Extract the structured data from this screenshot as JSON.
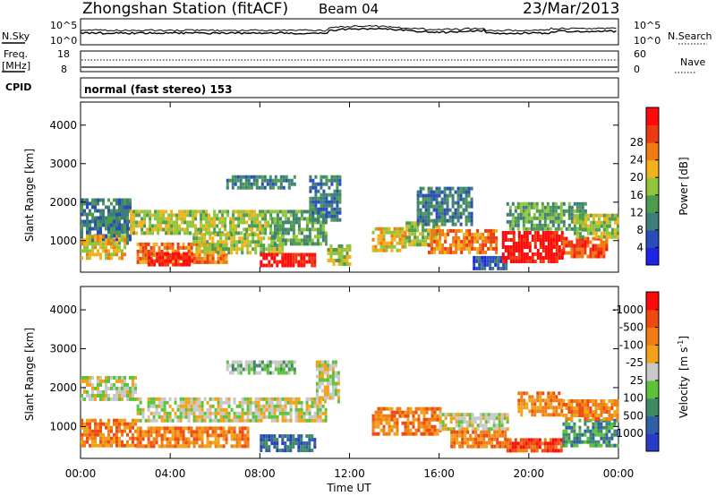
{
  "header": {
    "station": "Zhongshan Station (fitACF)",
    "beam": "Beam 04",
    "date": "23/Mar/2013"
  },
  "sky_panel": {
    "left_label": "N.Sky",
    "right_label": "N.Search",
    "left_ticks": [
      "10^5",
      "10^0"
    ],
    "right_ticks": [
      "10^5",
      "10^0"
    ]
  },
  "freq_panel": {
    "left_label_1": "Freq.",
    "left_label_2": "[MHz]",
    "right_label": "Nave",
    "left_ticks": [
      "18",
      "8"
    ],
    "right_ticks": [
      "60",
      "0"
    ]
  },
  "cpid": {
    "label": "CPID",
    "mode_text": "normal (fast stereo) 153"
  },
  "chart_data": [
    {
      "type": "heatmap",
      "parameter": "Power",
      "ylabel": "Slant Range [km]",
      "ylim": [
        180,
        4600
      ],
      "yticks": [
        "1000",
        "2000",
        "3000",
        "4000"
      ],
      "xlim_hours": [
        0,
        24
      ],
      "colorbar_label": "Power [dB]",
      "colorbar_ticks": [
        "4",
        "8",
        "12",
        "16",
        "20",
        "24",
        "28"
      ],
      "colorbar_colors": [
        "#1f24e6",
        "#2a4eb8",
        "#3d7d7a",
        "#4e9a4f",
        "#8fc63c",
        "#f2b21a",
        "#f07a14",
        "#ee3a12",
        "#ff0a0a"
      ],
      "regions": [
        {
          "t": [
            0.0,
            2.2
          ],
          "r": [
            900,
            2100
          ],
          "level": 2
        },
        {
          "t": [
            0.0,
            2.0
          ],
          "r": [
            550,
            1150
          ],
          "level": 5
        },
        {
          "t": [
            2.2,
            8.5
          ],
          "r": [
            1150,
            1800
          ],
          "level": 4
        },
        {
          "t": [
            2.5,
            6.5
          ],
          "r": [
            450,
            950
          ],
          "level": 6
        },
        {
          "t": [
            3.0,
            5.0
          ],
          "r": [
            350,
            700
          ],
          "level": 8
        },
        {
          "t": [
            5.0,
            9.0
          ],
          "r": [
            700,
            1200
          ],
          "level": 4
        },
        {
          "t": [
            6.5,
            9.5
          ],
          "r": [
            2400,
            2700
          ],
          "level": 2
        },
        {
          "t": [
            8.0,
            10.5
          ],
          "r": [
            320,
            680
          ],
          "level": 8
        },
        {
          "t": [
            8.5,
            11.0
          ],
          "r": [
            950,
            1800
          ],
          "level": 3
        },
        {
          "t": [
            10.2,
            11.6
          ],
          "r": [
            1500,
            2700
          ],
          "level": 2
        },
        {
          "t": [
            11.0,
            12.0
          ],
          "r": [
            400,
            900
          ],
          "level": 4
        },
        {
          "t": [
            13.0,
            14.5
          ],
          "r": [
            700,
            1350
          ],
          "level": 5
        },
        {
          "t": [
            14.5,
            16.0
          ],
          "r": [
            850,
            1500
          ],
          "level": 4
        },
        {
          "t": [
            15.5,
            18.5
          ],
          "r": [
            650,
            1300
          ],
          "level": 6
        },
        {
          "t": [
            15.0,
            17.5
          ],
          "r": [
            1400,
            2400
          ],
          "level": 2
        },
        {
          "t": [
            17.5,
            19.0
          ],
          "r": [
            300,
            600
          ],
          "level": 1
        },
        {
          "t": [
            18.8,
            21.5
          ],
          "r": [
            450,
            1250
          ],
          "level": 8
        },
        {
          "t": [
            19.0,
            22.5
          ],
          "r": [
            1300,
            2000
          ],
          "level": 3
        },
        {
          "t": [
            21.5,
            23.5
          ],
          "r": [
            550,
            1100
          ],
          "level": 7
        },
        {
          "t": [
            22.0,
            24.0
          ],
          "r": [
            1100,
            1700
          ],
          "level": 4
        }
      ]
    },
    {
      "type": "heatmap",
      "parameter": "Velocity",
      "ylabel": "Slant Range [km]",
      "ylim": [
        180,
        4600
      ],
      "yticks": [
        "1000",
        "2000",
        "3000",
        "4000"
      ],
      "xlabel": "Time UT",
      "xticks": [
        "00:00",
        "04:00",
        "08:00",
        "12:00",
        "16:00",
        "20:00",
        "00:00"
      ],
      "xlim_hours": [
        0,
        24
      ],
      "colorbar_label_1": "Velocity",
      "colorbar_label_2": "[m s",
      "colorbar_label_sup": "-1",
      "colorbar_label_3": "]",
      "colorbar_ticks": [
        "1000",
        "500",
        "100",
        "25",
        "-25",
        "-100",
        "-500",
        "-1000"
      ],
      "colorbar_colors": [
        "#2a3bc8",
        "#2f5fa6",
        "#3f8a63",
        "#5cc23a",
        "#c8c8c8",
        "#f2a21a",
        "#f07e14",
        "#ee4a12",
        "#ff0a0a"
      ],
      "regions": [
        {
          "t": [
            0.0,
            2.5
          ],
          "r": [
            1700,
            2300
          ],
          "level": 4
        },
        {
          "t": [
            0.0,
            2.5
          ],
          "r": [
            500,
            1200
          ],
          "level": 6
        },
        {
          "t": [
            2.5,
            11.0
          ],
          "r": [
            1150,
            1750
          ],
          "level": 4
        },
        {
          "t": [
            2.5,
            7.5
          ],
          "r": [
            450,
            1000
          ],
          "level": 6
        },
        {
          "t": [
            6.5,
            9.5
          ],
          "r": [
            2350,
            2700
          ],
          "level": 3
        },
        {
          "t": [
            8.0,
            10.5
          ],
          "r": [
            400,
            800
          ],
          "level": 1
        },
        {
          "t": [
            10.5,
            11.5
          ],
          "r": [
            1600,
            2700
          ],
          "level": 4
        },
        {
          "t": [
            13.0,
            16.0
          ],
          "r": [
            800,
            1500
          ],
          "level": 6
        },
        {
          "t": [
            16.0,
            19.0
          ],
          "r": [
            900,
            1350
          ],
          "level": 4
        },
        {
          "t": [
            16.5,
            19.0
          ],
          "r": [
            500,
            900
          ],
          "level": 6
        },
        {
          "t": [
            19.0,
            21.5
          ],
          "r": [
            350,
            700
          ],
          "level": 7
        },
        {
          "t": [
            19.5,
            21.5
          ],
          "r": [
            1300,
            1900
          ],
          "level": 6
        },
        {
          "t": [
            21.5,
            24.0
          ],
          "r": [
            500,
            1200
          ],
          "level": 2
        },
        {
          "t": [
            21.5,
            24.0
          ],
          "r": [
            1200,
            1700
          ],
          "level": 6
        }
      ]
    }
  ]
}
